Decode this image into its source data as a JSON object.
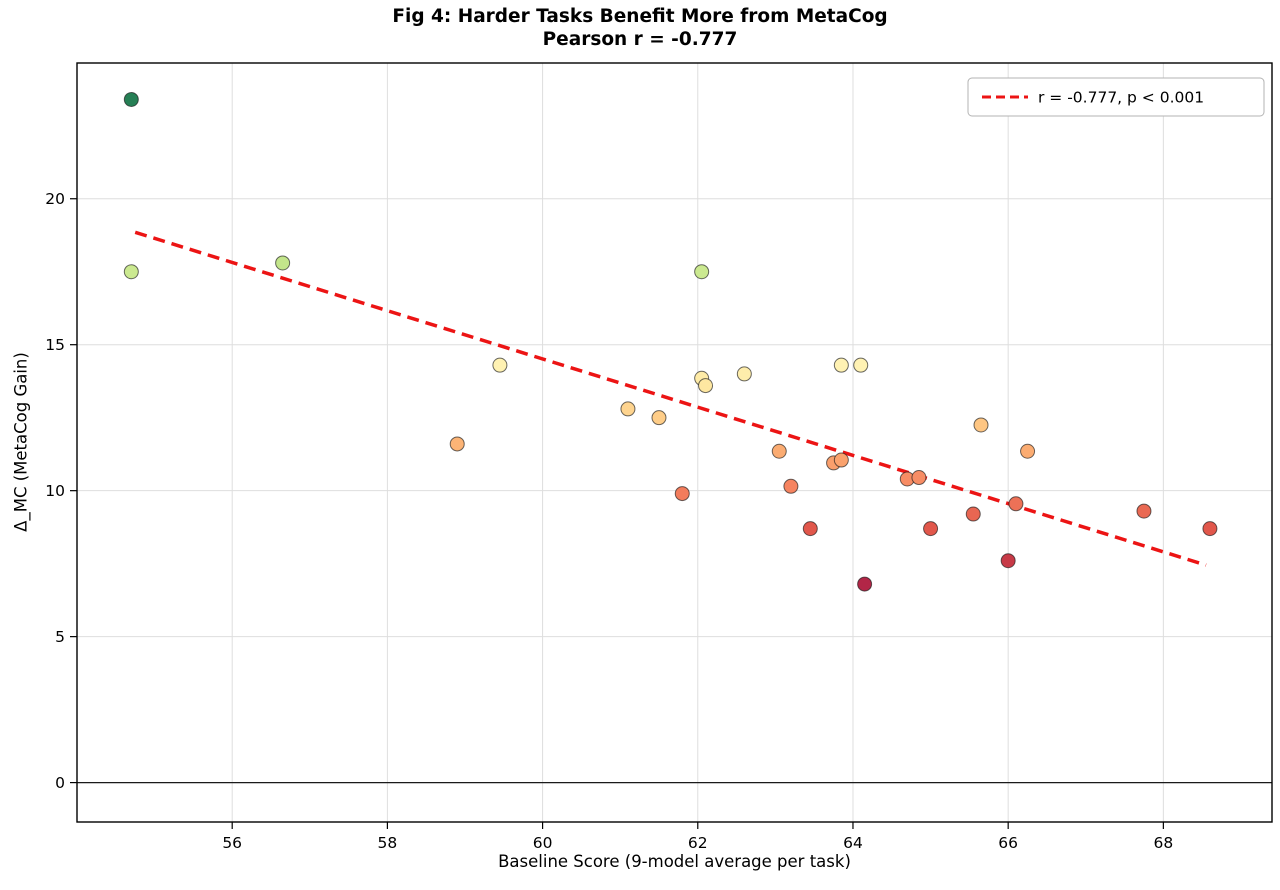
{
  "figure": {
    "title_line1": "Fig 4: Harder Tasks Benefit More from MetaCog",
    "title_line2": "Pearson r = -0.777",
    "xlabel": "Baseline Score (9-model average per task)",
    "ylabel": "Δ_MC (MetaCog Gain)"
  },
  "chart_data": {
    "type": "scatter",
    "title": "Fig 4: Harder Tasks Benefit More from MetaCog\nPearson r = -0.777",
    "xlabel": "Baseline Score (9-model average per task)",
    "ylabel": "Δ_MC (MetaCog Gain)",
    "xlim": [
      54.0,
      69.4
    ],
    "ylim": [
      -1.35,
      24.65
    ],
    "xticks": [
      56,
      58,
      60,
      62,
      64,
      66,
      68
    ],
    "yticks": [
      0,
      5,
      10,
      15,
      20
    ],
    "grid": true,
    "zero_line": true,
    "color_encoding": "RdYlGn colormap by gain value (green = high gain, red = low gain)",
    "points": [
      {
        "x": 54.7,
        "y": 23.4,
        "color": "#267f55"
      },
      {
        "x": 54.7,
        "y": 17.5,
        "color": "#cbe990"
      },
      {
        "x": 56.65,
        "y": 17.8,
        "color": "#c3e58b"
      },
      {
        "x": 58.9,
        "y": 11.6,
        "color": "#fcb476"
      },
      {
        "x": 59.45,
        "y": 14.3,
        "color": "#fff2b3"
      },
      {
        "x": 61.1,
        "y": 12.8,
        "color": "#fed48f"
      },
      {
        "x": 61.5,
        "y": 12.5,
        "color": "#fecd88"
      },
      {
        "x": 61.8,
        "y": 9.9,
        "color": "#f27c5c"
      },
      {
        "x": 62.05,
        "y": 17.5,
        "color": "#cbe990"
      },
      {
        "x": 62.05,
        "y": 13.85,
        "color": "#feeba7"
      },
      {
        "x": 62.1,
        "y": 13.6,
        "color": "#fee7a1"
      },
      {
        "x": 62.6,
        "y": 14.0,
        "color": "#feedab"
      },
      {
        "x": 63.05,
        "y": 11.35,
        "color": "#fbac72"
      },
      {
        "x": 63.2,
        "y": 10.15,
        "color": "#f68460"
      },
      {
        "x": 63.45,
        "y": 8.7,
        "color": "#e1574b"
      },
      {
        "x": 63.75,
        "y": 10.95,
        "color": "#f99f6c"
      },
      {
        "x": 63.85,
        "y": 11.05,
        "color": "#faa26d"
      },
      {
        "x": 63.85,
        "y": 14.3,
        "color": "#fff2b3"
      },
      {
        "x": 64.1,
        "y": 14.3,
        "color": "#fff2b3"
      },
      {
        "x": 64.15,
        "y": 6.8,
        "color": "#b22647"
      },
      {
        "x": 64.7,
        "y": 10.4,
        "color": "#f78c64"
      },
      {
        "x": 64.85,
        "y": 10.45,
        "color": "#f78d65"
      },
      {
        "x": 65.0,
        "y": 8.7,
        "color": "#e1574b"
      },
      {
        "x": 65.55,
        "y": 9.2,
        "color": "#e86652"
      },
      {
        "x": 65.65,
        "y": 12.25,
        "color": "#fec683"
      },
      {
        "x": 66.0,
        "y": 7.6,
        "color": "#c73a47"
      },
      {
        "x": 66.1,
        "y": 9.55,
        "color": "#ed7157"
      },
      {
        "x": 66.25,
        "y": 11.35,
        "color": "#fbac72"
      },
      {
        "x": 67.75,
        "y": 9.3,
        "color": "#e96953"
      },
      {
        "x": 68.6,
        "y": 8.7,
        "color": "#e1574b"
      }
    ],
    "trend_line": {
      "x1": 54.75,
      "y1": 18.85,
      "x2": 68.55,
      "y2": 7.45,
      "style": "dashed",
      "color": "#ec1414"
    },
    "legend": {
      "label": "r = -0.777, p < 0.001",
      "position": "upper right"
    },
    "stats": {
      "pearson_r": -0.777,
      "p_value": "< 0.001"
    }
  }
}
